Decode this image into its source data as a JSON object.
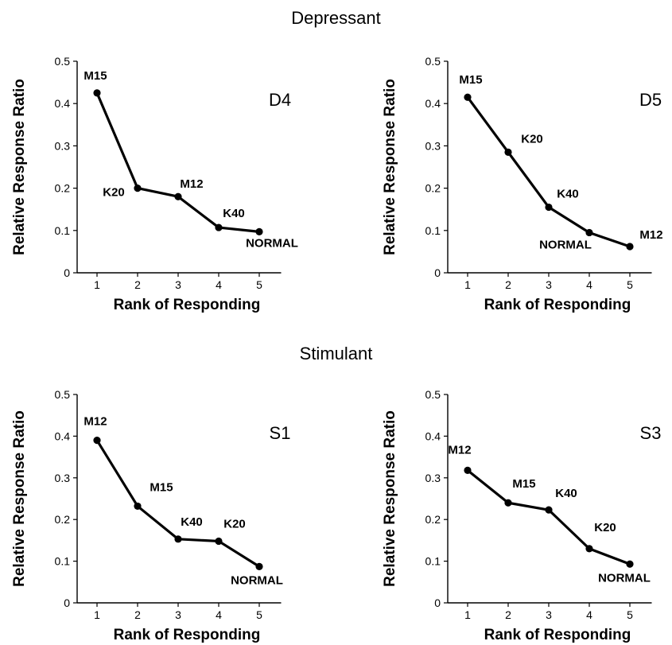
{
  "groups": {
    "depressant": "Depressant",
    "stimulant": "Stimulant"
  },
  "chart_data": [
    {
      "type": "line",
      "group": "Depressant",
      "panel_label": "D4",
      "xlabel": "Rank of Responding",
      "ylabel": "Relative Response Ratio",
      "x": [
        1,
        2,
        3,
        4,
        5
      ],
      "xticks": [
        "1",
        "2",
        "3",
        "4",
        "5"
      ],
      "yticks": [
        "0",
        "0.1",
        "0.2",
        "0.3",
        "0.4",
        "0.5"
      ],
      "xlim": [
        0.5,
        5.5
      ],
      "ylim": [
        0,
        0.5
      ],
      "values": [
        0.425,
        0.2,
        0.18,
        0.107,
        0.097
      ],
      "point_labels": [
        "M15",
        "K20",
        "M12",
        "K40",
        "NORMAL"
      ]
    },
    {
      "type": "line",
      "group": "Depressant",
      "panel_label": "D5",
      "xlabel": "Rank of Responding",
      "ylabel": "Relative Response Ratio",
      "x": [
        1,
        2,
        3,
        4,
        5
      ],
      "xticks": [
        "1",
        "2",
        "3",
        "4",
        "5"
      ],
      "yticks": [
        "0",
        "0.1",
        "0.2",
        "0.3",
        "0.4",
        "0.5"
      ],
      "xlim": [
        0.5,
        5.5
      ],
      "ylim": [
        0,
        0.5
      ],
      "values": [
        0.415,
        0.285,
        0.155,
        0.095,
        0.062
      ],
      "point_labels": [
        "M15",
        "K20",
        "K40",
        "NORMAL",
        "M12"
      ]
    },
    {
      "type": "line",
      "group": "Stimulant",
      "panel_label": "S1",
      "xlabel": "Rank of Responding",
      "ylabel": "Relative Response Ratio",
      "x": [
        1,
        2,
        3,
        4,
        5
      ],
      "xticks": [
        "1",
        "2",
        "3",
        "4",
        "5"
      ],
      "yticks": [
        "0",
        "0.1",
        "0.2",
        "0.3",
        "0.4",
        "0.5"
      ],
      "xlim": [
        0.5,
        5.5
      ],
      "ylim": [
        0,
        0.5
      ],
      "values": [
        0.39,
        0.232,
        0.153,
        0.148,
        0.087
      ],
      "point_labels": [
        "M12",
        "M15",
        "K40",
        "K20",
        "NORMAL"
      ]
    },
    {
      "type": "line",
      "group": "Stimulant",
      "panel_label": "S3",
      "xlabel": "Rank of Responding",
      "ylabel": "Relative Response Ratio",
      "x": [
        1,
        2,
        3,
        4,
        5
      ],
      "xticks": [
        "1",
        "2",
        "3",
        "4",
        "5"
      ],
      "yticks": [
        "0",
        "0.1",
        "0.2",
        "0.3",
        "0.4",
        "0.5"
      ],
      "xlim": [
        0.5,
        5.5
      ],
      "ylim": [
        0,
        0.5
      ],
      "values": [
        0.318,
        0.24,
        0.223,
        0.13,
        0.093
      ],
      "point_labels": [
        "M12",
        "M15",
        "K40",
        "K20",
        "NORMAL"
      ]
    }
  ]
}
